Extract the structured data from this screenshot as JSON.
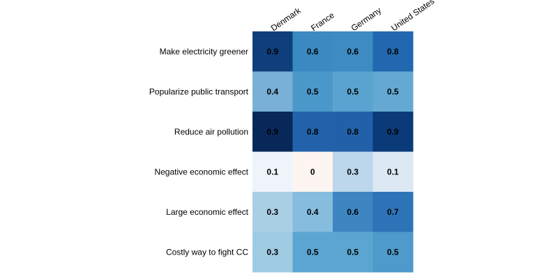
{
  "chart_data": {
    "type": "heatmap",
    "columns": [
      "Denmark",
      "France",
      "Germany",
      "United States"
    ],
    "rows": [
      "Make electricity greener",
      "Popularize public transport",
      "Reduce air pollution",
      "Negative economic effect",
      "Large economic effect",
      "Costly way to fight CC"
    ],
    "values": [
      [
        0.9,
        0.6,
        0.6,
        0.8
      ],
      [
        0.4,
        0.5,
        0.5,
        0.5
      ],
      [
        0.9,
        0.8,
        0.8,
        0.9
      ],
      [
        0.1,
        0,
        0.3,
        0.1
      ],
      [
        0.3,
        0.4,
        0.6,
        0.7
      ],
      [
        0.3,
        0.5,
        0.5,
        0.5
      ]
    ],
    "cell_colors": [
      [
        "#0e3f7c",
        "#3a89c1",
        "#3d8bc2",
        "#2268b0"
      ],
      [
        "#78b0d6",
        "#4a98ca",
        "#5aa3d0",
        "#64a9d3"
      ],
      [
        "#08285a",
        "#2262ab",
        "#2261aa",
        "#0b3a78"
      ],
      [
        "#eef4fa",
        "#fdf5f1",
        "#bcd7eb",
        "#dce9f5"
      ],
      [
        "#a9cfe5",
        "#86bcdd",
        "#3d86c1",
        "#2c74b7"
      ],
      [
        "#9fcbe2",
        "#5ca5d1",
        "#5ca5d1",
        "#4d9acb"
      ]
    ],
    "legend": "none",
    "grid": false
  }
}
